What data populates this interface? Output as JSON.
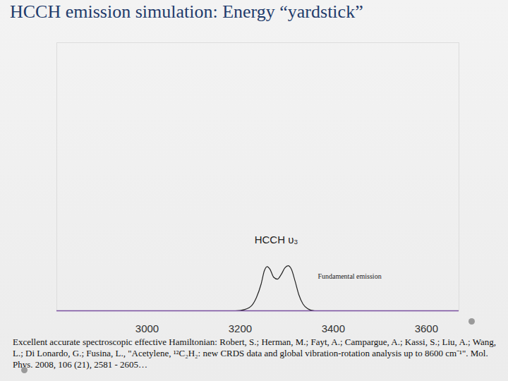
{
  "chart_data": {
    "type": "line",
    "title": "HCCH emission simulation: Energy “yardstick”",
    "x": [
      2806,
      3190,
      3210,
      3225,
      3235,
      3245,
      3252,
      3258,
      3264,
      3272,
      3280,
      3288,
      3296,
      3303,
      3310,
      3318,
      3326,
      3335,
      3345,
      3360,
      3670
    ],
    "values": [
      0,
      0,
      0.5,
      2,
      5,
      10,
      15,
      16.5,
      15.5,
      12.5,
      11.8,
      13.5,
      16,
      16.8,
      15.5,
      11,
      6,
      2.5,
      0.8,
      0,
      0
    ],
    "color": "#222222",
    "xlim": [
      2806,
      3670
    ],
    "xticks": [
      3000,
      3200,
      3400,
      3600
    ],
    "ylim": [
      0,
      100
    ],
    "tick_labels": "x",
    "annotations": [
      "HCCH υ₃",
      "Fundamental emission"
    ],
    "caption": "Excellent accurate spectroscopic effective Hamiltonian: Robert, S.; Herman, M.; Fayt, A.; Campargue, A.; Kassi, S.; Liu, A.; Wang, L.; Di Lonardo, G.; Fusina, L., \"Acetylene, ¹²C₂H₂: new CRDS data and global vibration-rotation analysis up to 8600 cm⁻¹\". Mol. Phys. 2008, 106 (21), 2581 - 2605…"
  }
}
